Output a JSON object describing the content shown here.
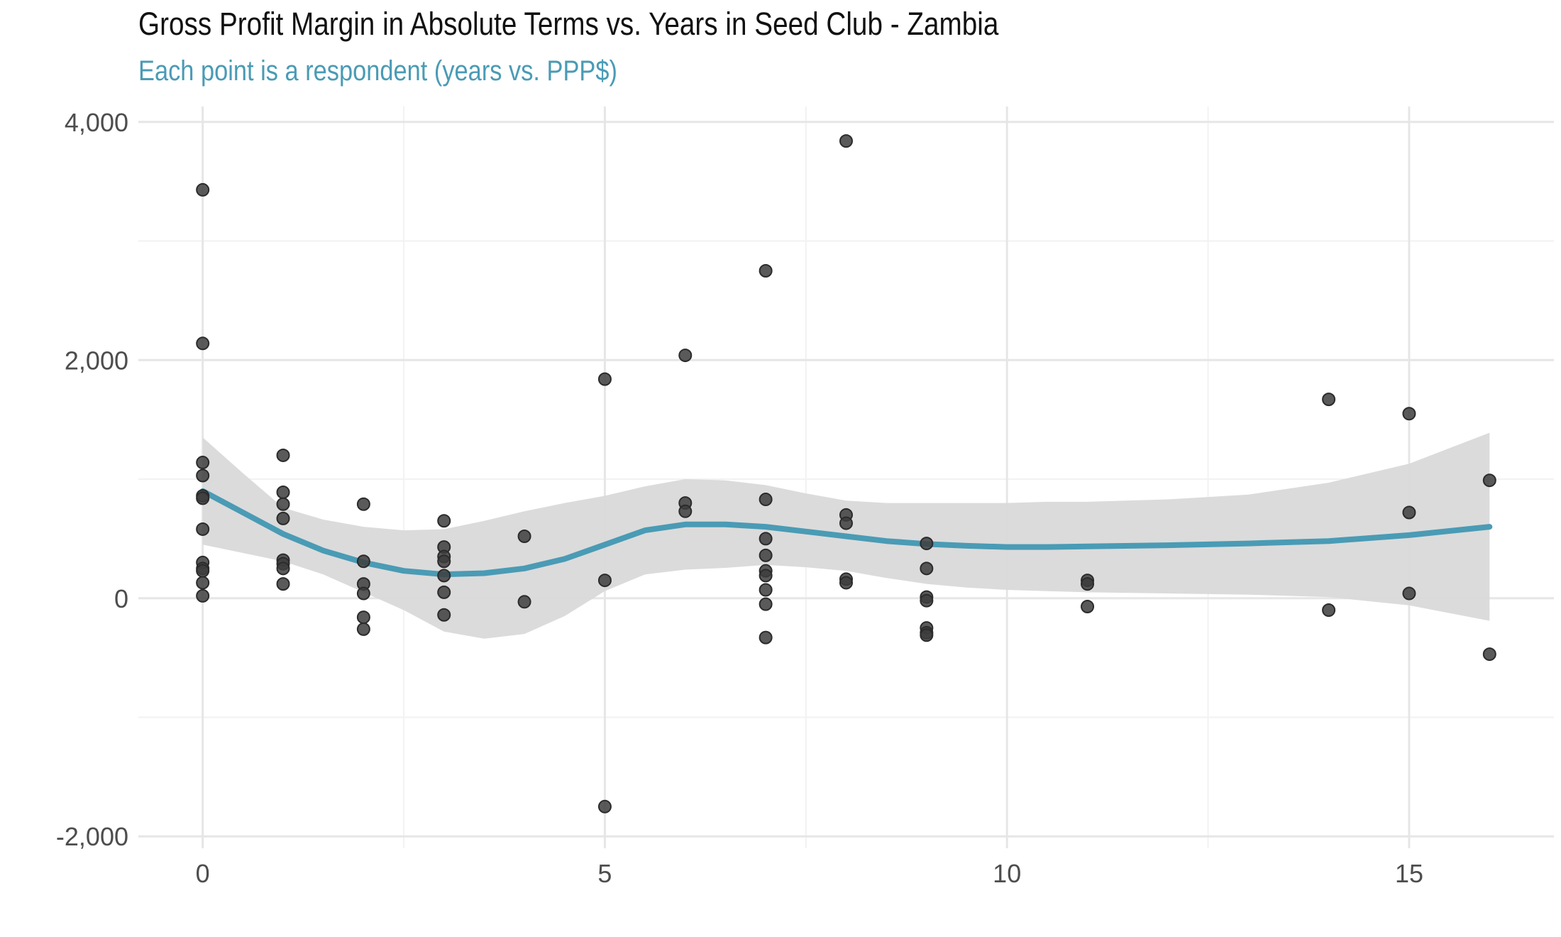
{
  "chart_data": {
    "type": "scatter",
    "title": "Gross Profit Margin in Absolute Terms vs. Years in Seed Club - Zambia",
    "subtitle": "Each point is a respondent (years vs. PPP$)",
    "xlabel": "",
    "ylabel": "",
    "xlim": [
      -0.8,
      16.8
    ],
    "ylim": [
      -2100,
      4130
    ],
    "x_ticks": [
      0,
      5,
      10,
      15
    ],
    "x_tick_labels": [
      "0",
      "5",
      "10",
      "15"
    ],
    "y_ticks": [
      -2000,
      0,
      2000,
      4000
    ],
    "y_tick_labels": [
      "-2,000",
      "0",
      "2,000",
      "4,000"
    ],
    "grid": true,
    "legend": "none",
    "points": [
      {
        "x": 0,
        "y": 3430
      },
      {
        "x": 0,
        "y": 2140
      },
      {
        "x": 0,
        "y": 1140
      },
      {
        "x": 0,
        "y": 1030
      },
      {
        "x": 0,
        "y": 860
      },
      {
        "x": 0,
        "y": 840
      },
      {
        "x": 0,
        "y": 580
      },
      {
        "x": 0,
        "y": 300
      },
      {
        "x": 0,
        "y": 250
      },
      {
        "x": 0,
        "y": 230
      },
      {
        "x": 0,
        "y": 130
      },
      {
        "x": 0,
        "y": 20
      },
      {
        "x": 1,
        "y": 1200
      },
      {
        "x": 1,
        "y": 890
      },
      {
        "x": 1,
        "y": 790
      },
      {
        "x": 1,
        "y": 670
      },
      {
        "x": 1,
        "y": 320
      },
      {
        "x": 1,
        "y": 290
      },
      {
        "x": 1,
        "y": 250
      },
      {
        "x": 1,
        "y": 120
      },
      {
        "x": 2,
        "y": 790
      },
      {
        "x": 2,
        "y": 310
      },
      {
        "x": 2,
        "y": 120
      },
      {
        "x": 2,
        "y": 40
      },
      {
        "x": 2,
        "y": -160
      },
      {
        "x": 2,
        "y": -260
      },
      {
        "x": 3,
        "y": 650
      },
      {
        "x": 3,
        "y": 430
      },
      {
        "x": 3,
        "y": 350
      },
      {
        "x": 3,
        "y": 310
      },
      {
        "x": 3,
        "y": 190
      },
      {
        "x": 3,
        "y": 50
      },
      {
        "x": 3,
        "y": -140
      },
      {
        "x": 4,
        "y": 520
      },
      {
        "x": 4,
        "y": -30
      },
      {
        "x": 5,
        "y": 1840
      },
      {
        "x": 5,
        "y": 150
      },
      {
        "x": 5,
        "y": -1750
      },
      {
        "x": 6,
        "y": 2040
      },
      {
        "x": 6,
        "y": 800
      },
      {
        "x": 6,
        "y": 730
      },
      {
        "x": 7,
        "y": 2750
      },
      {
        "x": 7,
        "y": 830
      },
      {
        "x": 7,
        "y": 500
      },
      {
        "x": 7,
        "y": 360
      },
      {
        "x": 7,
        "y": 230
      },
      {
        "x": 7,
        "y": 190
      },
      {
        "x": 7,
        "y": 70
      },
      {
        "x": 7,
        "y": -50
      },
      {
        "x": 7,
        "y": -330
      },
      {
        "x": 8,
        "y": 3840
      },
      {
        "x": 8,
        "y": 700
      },
      {
        "x": 8,
        "y": 630
      },
      {
        "x": 8,
        "y": 160
      },
      {
        "x": 8,
        "y": 130
      },
      {
        "x": 9,
        "y": 460
      },
      {
        "x": 9,
        "y": 250
      },
      {
        "x": 9,
        "y": 10
      },
      {
        "x": 9,
        "y": -20
      },
      {
        "x": 9,
        "y": -250
      },
      {
        "x": 9,
        "y": -290
      },
      {
        "x": 9,
        "y": -310
      },
      {
        "x": 11,
        "y": 150
      },
      {
        "x": 11,
        "y": 120
      },
      {
        "x": 11,
        "y": -70
      },
      {
        "x": 14,
        "y": 1670
      },
      {
        "x": 14,
        "y": -100
      },
      {
        "x": 15,
        "y": 1550
      },
      {
        "x": 15,
        "y": 720
      },
      {
        "x": 15,
        "y": 40
      },
      {
        "x": 16,
        "y": 990
      },
      {
        "x": 16,
        "y": -470
      }
    ],
    "smooth": {
      "name": "",
      "x": [
        0,
        0.5,
        1,
        1.5,
        2,
        2.5,
        3,
        3.5,
        4,
        4.5,
        5,
        5.5,
        6,
        6.5,
        7,
        7.5,
        8,
        8.5,
        9,
        9.5,
        10,
        10.5,
        11,
        12,
        13,
        14,
        15,
        16
      ],
      "y": [
        900,
        720,
        540,
        400,
        300,
        230,
        200,
        210,
        250,
        330,
        450,
        570,
        620,
        620,
        600,
        560,
        520,
        480,
        455,
        440,
        430,
        430,
        435,
        445,
        460,
        480,
        530,
        600
      ],
      "lower": [
        450,
        380,
        310,
        200,
        50,
        -100,
        -280,
        -340,
        -300,
        -150,
        60,
        200,
        240,
        255,
        280,
        260,
        230,
        170,
        120,
        90,
        70,
        60,
        50,
        40,
        30,
        10,
        -60,
        -190
      ],
      "upper": [
        1350,
        1050,
        760,
        660,
        600,
        570,
        580,
        650,
        730,
        800,
        860,
        940,
        1000,
        990,
        950,
        880,
        820,
        800,
        800,
        800,
        800,
        810,
        810,
        830,
        870,
        970,
        1130,
        1390
      ]
    },
    "colors": {
      "points": "#3d3d3d",
      "point_stroke": "#2b2b2b",
      "smooth_line": "#4a9bb5",
      "ribbon": "#d9d9d9",
      "subtitle": "#4a9bb5",
      "grid_major": "#e6e6e6",
      "grid_minor": "#f2f2f2"
    }
  }
}
